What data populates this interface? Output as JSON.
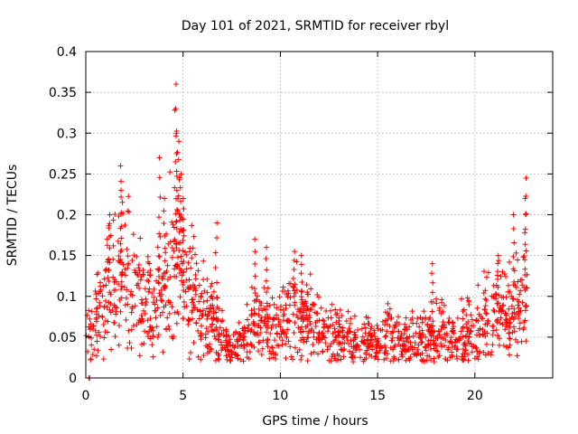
{
  "chart_data": {
    "type": "scatter",
    "title": "Day 101 of 2021, SRMTID for receiver rbyl",
    "xlabel": "GPS time / hours",
    "ylabel": "SRMTID / TECUs",
    "xlim": [
      0,
      24
    ],
    "ylim": [
      0,
      0.4
    ],
    "x_ticks": [
      0,
      5,
      10,
      15,
      20
    ],
    "y_ticks": [
      0,
      0.05,
      0.1,
      0.15,
      0.2,
      0.25,
      0.3,
      0.35,
      0.4
    ],
    "x_tick_labels": [
      "0",
      "5",
      "10",
      "15",
      "20"
    ],
    "y_tick_labels": [
      "0",
      "0.05",
      "0.1",
      "0.15",
      "0.2",
      "0.25",
      "0.3",
      "0.35",
      "0.4"
    ],
    "grid": true,
    "marker": "+",
    "color": "#ff0000",
    "time_range_hours": [
      0,
      22.7
    ],
    "profile": [
      [
        0.0,
        0.055
      ],
      [
        0.5,
        0.07
      ],
      [
        1.0,
        0.095
      ],
      [
        1.5,
        0.12
      ],
      [
        2.0,
        0.13
      ],
      [
        2.5,
        0.11
      ],
      [
        3.0,
        0.09
      ],
      [
        3.5,
        0.085
      ],
      [
        4.0,
        0.11
      ],
      [
        4.5,
        0.14
      ],
      [
        5.0,
        0.13
      ],
      [
        5.5,
        0.1
      ],
      [
        6.0,
        0.085
      ],
      [
        6.5,
        0.07
      ],
      [
        7.0,
        0.05
      ],
      [
        7.5,
        0.035
      ],
      [
        8.0,
        0.045
      ],
      [
        8.5,
        0.06
      ],
      [
        9.0,
        0.07
      ],
      [
        9.5,
        0.06
      ],
      [
        10.0,
        0.07
      ],
      [
        10.5,
        0.08
      ],
      [
        11.0,
        0.075
      ],
      [
        11.5,
        0.07
      ],
      [
        12.0,
        0.06
      ],
      [
        12.5,
        0.055
      ],
      [
        13.0,
        0.05
      ],
      [
        13.5,
        0.05
      ],
      [
        14.0,
        0.045
      ],
      [
        14.5,
        0.045
      ],
      [
        15.0,
        0.045
      ],
      [
        15.5,
        0.05
      ],
      [
        16.0,
        0.045
      ],
      [
        16.5,
        0.04
      ],
      [
        17.0,
        0.045
      ],
      [
        17.5,
        0.055
      ],
      [
        18.0,
        0.06
      ],
      [
        18.5,
        0.055
      ],
      [
        19.0,
        0.045
      ],
      [
        19.5,
        0.05
      ],
      [
        20.0,
        0.06
      ],
      [
        20.5,
        0.07
      ],
      [
        21.0,
        0.08
      ],
      [
        21.5,
        0.085
      ],
      [
        22.0,
        0.08
      ],
      [
        22.7,
        0.09
      ]
    ],
    "spikes": [
      {
        "x": 1.2,
        "y": 0.2
      },
      {
        "x": 1.8,
        "y": 0.26
      },
      {
        "x": 1.85,
        "y": 0.23
      },
      {
        "x": 3.8,
        "y": 0.27
      },
      {
        "x": 4.05,
        "y": 0.22
      },
      {
        "x": 4.6,
        "y": 0.36
      },
      {
        "x": 4.65,
        "y": 0.33
      },
      {
        "x": 4.7,
        "y": 0.3
      },
      {
        "x": 4.8,
        "y": 0.29
      },
      {
        "x": 4.9,
        "y": 0.25
      },
      {
        "x": 5.0,
        "y": 0.22
      },
      {
        "x": 6.7,
        "y": 0.19
      },
      {
        "x": 8.7,
        "y": 0.17
      },
      {
        "x": 9.3,
        "y": 0.16
      },
      {
        "x": 10.7,
        "y": 0.155
      },
      {
        "x": 11.1,
        "y": 0.15
      },
      {
        "x": 17.8,
        "y": 0.14
      },
      {
        "x": 21.2,
        "y": 0.15
      },
      {
        "x": 22.0,
        "y": 0.2
      },
      {
        "x": 22.6,
        "y": 0.245
      },
      {
        "x": 22.6,
        "y": 0.22
      }
    ],
    "outliers_at_zero": [
      {
        "x": 0.15,
        "y": 0.0
      },
      {
        "x": 0.2,
        "y": 0.0
      }
    ]
  }
}
